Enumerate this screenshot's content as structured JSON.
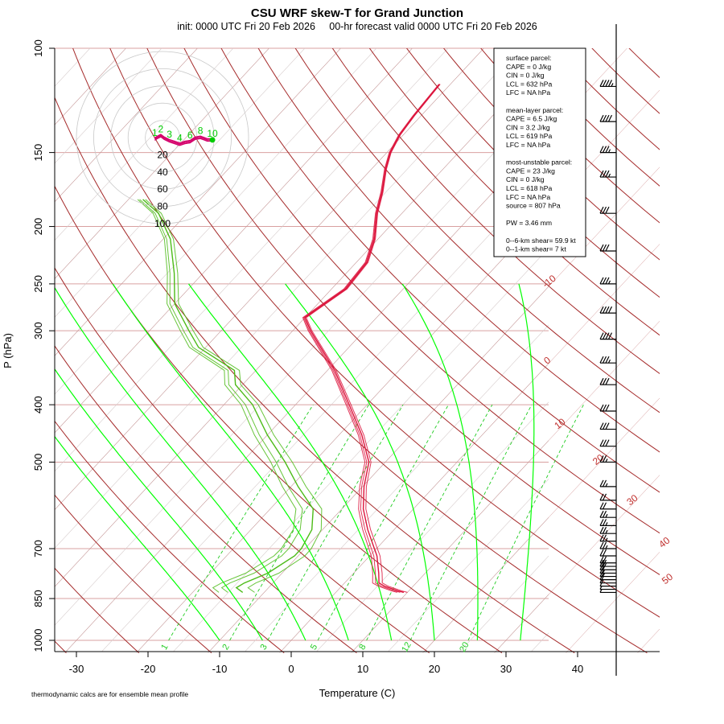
{
  "title": "CSU WRF skew-T for Grand Junction",
  "subtitle": "init: 0000 UTC Fri 20 Feb 2026     00-hr forecast valid 0000 UTC Fri 20 Feb 2026",
  "xlabel": "Temperature (C)",
  "ylabel": "P (hPa)",
  "footnote": "thermodynamic calcs are for ensemble mean profile",
  "info_box": [
    "surface parcel:",
    "CAPE = 0 J/kg",
    "CIN = 0 J/kg",
    "LCL = 632 hPa",
    "LFC = NA hPa",
    "",
    "mean-layer parcel:",
    "CAPE = 6.5 J/kg",
    "CIN = 3.2 J/kg",
    "LCL = 619 hPa",
    "LFC = NA hPa",
    "",
    "most-unstable parcel:",
    "CAPE = 23 J/kg",
    "CIN = 0 J/kg",
    "LCL = 618 hPa",
    "LFC = NA hPa",
    "source = 807 hPa",
    "",
    "PW =  3.46 mm",
    "",
    "0--6-km shear= 59.9 kt",
    "0--1-km shear= 7 kt"
  ],
  "colors": {
    "isotherm_adiabat": "#a52a2a",
    "moist_adiabat": "#00ff00",
    "mixing_ratio": "#22cc22",
    "temperature": "#dc143c",
    "dewpoint": "#4cbb17",
    "isobar": "#d9a0a0",
    "skew_grid": "#d6cccc",
    "hodo_ring": "#c8c8c8",
    "hodo_trace": "#d4006a",
    "hodo_marker": "#00cc00"
  },
  "chart_data": {
    "type": "line",
    "chart_kind": "skew-T log-P diagram",
    "x_axis": {
      "label": "Temperature (C)",
      "ticks": [
        "-30",
        "-20",
        "-10",
        "0",
        "10",
        "20",
        "30",
        "40"
      ],
      "range_C_at_bottom": [
        -33,
        46
      ]
    },
    "y_axis": {
      "label": "P (hPa)",
      "scale": "log",
      "ticks": [
        "100",
        "150",
        "200",
        "250",
        "300",
        "400",
        "500",
        "700",
        "850",
        "1000"
      ],
      "range_hPa": [
        100,
        1000
      ]
    },
    "isotherm_labels": [
      "-10",
      "0",
      "10",
      "20",
      "30",
      "40",
      "50"
    ],
    "mixing_ratio_labels": [
      "1",
      "2",
      "3",
      "5",
      "8",
      "12",
      "20"
    ],
    "moist_adiabat_thetaw_C": [
      -10,
      -4,
      2,
      8,
      14,
      20,
      26,
      32
    ],
    "series": [
      {
        "name": "temperature",
        "ensemble_spread": [
          0,
          -0.6,
          0.6,
          -1.1
        ],
        "points_p_T": [
          [
            830,
            9.5
          ],
          [
            825,
            8.5
          ],
          [
            810,
            6.0
          ],
          [
            800,
            4.8
          ],
          [
            770,
            3.5
          ],
          [
            720,
            1.0
          ],
          [
            700,
            -0.3
          ],
          [
            650,
            -3.7
          ],
          [
            600,
            -7.0
          ],
          [
            550,
            -9.8
          ],
          [
            500,
            -12.3
          ],
          [
            450,
            -16.8
          ],
          [
            400,
            -22.5
          ],
          [
            350,
            -29.0
          ],
          [
            300,
            -37.5
          ],
          [
            285,
            -40.0
          ],
          [
            255,
            -38.0
          ],
          [
            230,
            -38.5
          ],
          [
            210,
            -40.5
          ],
          [
            190,
            -43.5
          ],
          [
            175,
            -45.5
          ],
          [
            160,
            -48.0
          ],
          [
            150,
            -49.5
          ],
          [
            140,
            -50.5
          ],
          [
            130,
            -51.0
          ],
          [
            115,
            -51.5
          ]
        ]
      },
      {
        "name": "dewpoint",
        "ensemble_spread": [
          0,
          -2.5,
          2.0,
          -4.0
        ],
        "points_p_Td": [
          [
            830,
            -13.0
          ],
          [
            815,
            -14.5
          ],
          [
            800,
            -14.0
          ],
          [
            770,
            -12.0
          ],
          [
            720,
            -10.5
          ],
          [
            700,
            -10.5
          ],
          [
            650,
            -11.5
          ],
          [
            600,
            -14.0
          ],
          [
            550,
            -19.0
          ],
          [
            500,
            -24.0
          ],
          [
            450,
            -30.0
          ],
          [
            400,
            -36.0
          ],
          [
            370,
            -41.0
          ],
          [
            350,
            -43.0
          ],
          [
            320,
            -51.0
          ],
          [
            300,
            -54.5
          ],
          [
            270,
            -60.0
          ],
          [
            240,
            -64.0
          ],
          [
            210,
            -69.0
          ],
          [
            190,
            -74.0
          ],
          [
            180,
            -78.0
          ]
        ]
      }
    ],
    "wind_barbs": {
      "units": "kt",
      "levels_hPa": [
        830,
        820,
        810,
        800,
        790,
        780,
        770,
        760,
        750,
        740,
        720,
        700,
        680,
        660,
        640,
        620,
        600,
        580,
        550,
        500,
        470,
        440,
        410,
        370,
        340,
        310,
        280,
        250,
        220,
        190,
        165,
        150,
        133,
        116
      ],
      "speed_kt": [
        5,
        5,
        10,
        10,
        10,
        15,
        15,
        20,
        20,
        20,
        20,
        25,
        25,
        25,
        25,
        25,
        20,
        20,
        25,
        25,
        30,
        30,
        30,
        30,
        35,
        40,
        40,
        35,
        30,
        30,
        35,
        35,
        40,
        45
      ]
    },
    "hodograph": {
      "ring_labels": [
        "20",
        "40",
        "60",
        "80",
        "100"
      ],
      "ring_speeds_kt": [
        20,
        40,
        60,
        80,
        100
      ],
      "height_labels": [
        "1",
        "2",
        "3",
        "4",
        "6",
        "8",
        "10"
      ],
      "trace_uv_kt": [
        [
          -9,
          2
        ],
        [
          -6,
          4
        ],
        [
          -2,
          6
        ],
        [
          2,
          3
        ],
        [
          8,
          0
        ],
        [
          14,
          -2
        ],
        [
          20,
          -4
        ],
        [
          26,
          -2
        ],
        [
          32,
          -1
        ],
        [
          38,
          3
        ],
        [
          44,
          4
        ],
        [
          52,
          1
        ],
        [
          58,
          1
        ]
      ]
    }
  }
}
